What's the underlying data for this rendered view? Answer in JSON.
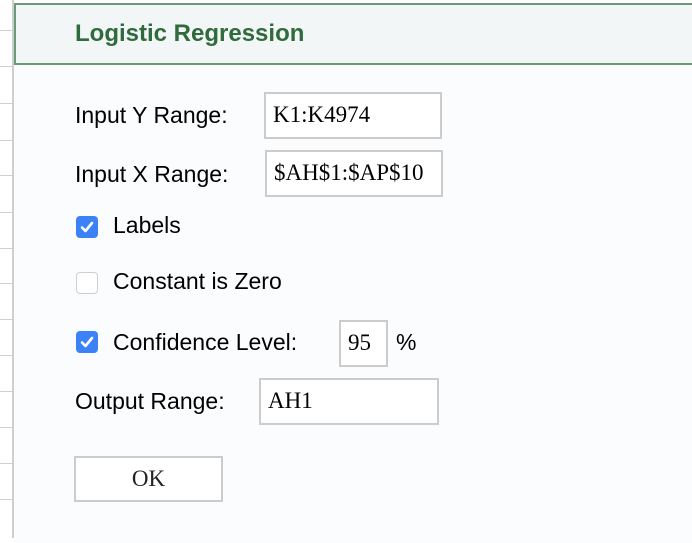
{
  "dialog": {
    "title": "Logistic Regression",
    "input_y": {
      "label": "Input Y Range:",
      "value": "K1:K4974"
    },
    "input_x": {
      "label": "Input X Range:",
      "value": "$AH$1:$AP$10"
    },
    "labels": {
      "label": "Labels",
      "checked": true
    },
    "constant_zero": {
      "label": "Constant is Zero",
      "checked": false
    },
    "confidence": {
      "label": "Confidence Level:",
      "checked": true,
      "value": "95",
      "unit": "%"
    },
    "output": {
      "label": "Output Range:",
      "value": "AH1"
    },
    "ok_label": "OK"
  },
  "colors": {
    "accent": "#2f6b3c",
    "checkbox": "#3b82f6"
  }
}
